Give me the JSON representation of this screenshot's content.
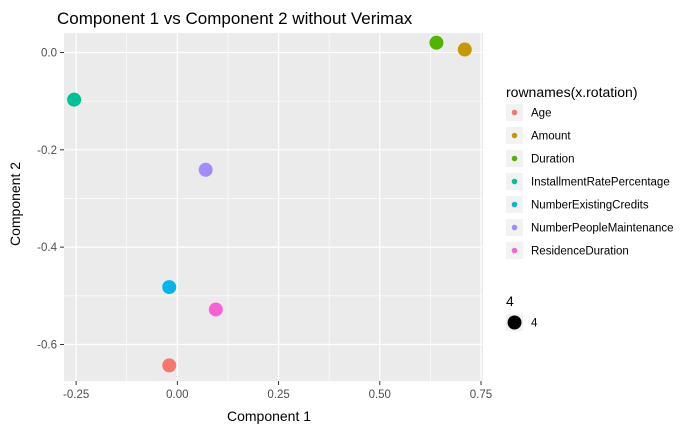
{
  "chart_data": {
    "type": "scatter",
    "title": "Component 1 vs Component 2 without Verimax",
    "xlabel": "Component 1",
    "ylabel": "Component 2",
    "xlim": [
      -0.28,
      0.755
    ],
    "ylim": [
      -0.675,
      0.04
    ],
    "x_ticks": [
      -0.25,
      0.0,
      0.25,
      0.5,
      0.75
    ],
    "x_tick_labels": [
      "-0.25",
      "0.00",
      "0.25",
      "0.50",
      "0.75"
    ],
    "y_ticks": [
      0.0,
      -0.2,
      -0.4,
      -0.6
    ],
    "y_tick_labels": [
      "0.0",
      "-0.2",
      "-0.4",
      "-0.6"
    ],
    "grid": true,
    "legend_position": "right",
    "color_legend": {
      "title": "rownames(x.rotation)",
      "entries": [
        {
          "name": "Age",
          "color": "#F8766D"
        },
        {
          "name": "Amount",
          "color": "#C49A00"
        },
        {
          "name": "Duration",
          "color": "#53B400"
        },
        {
          "name": "InstallmentRatePercentage",
          "color": "#00C094"
        },
        {
          "name": "NumberExistingCredits",
          "color": "#00B6EB"
        },
        {
          "name": "NumberPeopleMaintenance",
          "color": "#A58AFF"
        },
        {
          "name": "ResidenceDuration",
          "color": "#FB61D7"
        }
      ]
    },
    "size_legend": {
      "title": "4",
      "entries": [
        {
          "label": "4"
        }
      ]
    },
    "points": [
      {
        "name": "Age",
        "x": -0.02,
        "y": -0.643,
        "color": "#F8766D"
      },
      {
        "name": "Amount",
        "x": 0.71,
        "y": 0.006,
        "color": "#C49A00"
      },
      {
        "name": "Duration",
        "x": 0.64,
        "y": 0.02,
        "color": "#53B400"
      },
      {
        "name": "InstallmentRatePercentage",
        "x": -0.255,
        "y": -0.097,
        "color": "#00C094"
      },
      {
        "name": "NumberExistingCredits",
        "x": -0.02,
        "y": -0.482,
        "color": "#00B6EB"
      },
      {
        "name": "NumberPeopleMaintenance",
        "x": 0.07,
        "y": -0.241,
        "color": "#A58AFF"
      },
      {
        "name": "ResidenceDuration",
        "x": 0.095,
        "y": -0.528,
        "color": "#FB61D7"
      }
    ]
  }
}
